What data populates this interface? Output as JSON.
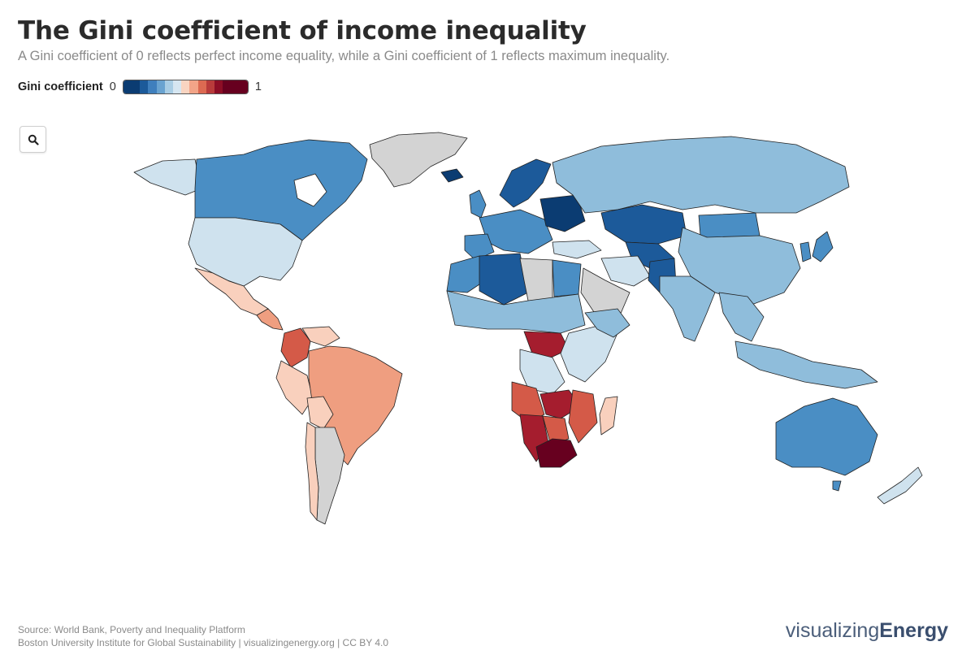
{
  "header": {
    "title": "The Gini coefficient of income inequality",
    "subtitle": "A Gini coefficient of 0 reflects perfect income equality, while a Gini coefficient of 1 reflects maximum inequality."
  },
  "legend": {
    "title": "Gini coefficient",
    "min_label": "0",
    "max_label": "1",
    "colors": [
      "#0b3c72",
      "#0b3c72",
      "#1c5a9a",
      "#3f7fbd",
      "#6aa3d0",
      "#a9cde4",
      "#d6e6f1",
      "#f9d4c1",
      "#f2a488",
      "#dc6a52",
      "#b83b3b",
      "#8c0e26",
      "#67001f",
      "#67001f",
      "#67001f"
    ]
  },
  "controls": {
    "zoom_icon": "magnifier-icon"
  },
  "palette": {
    "no_data": "#d3d3d3",
    "very_low": "#0b3c72",
    "low": "#1c5a9a",
    "low_mid": "#4a8ec4",
    "mid_low": "#8fbddb",
    "mid": "#cfe2ee",
    "mid_high": "#f9d0bd",
    "high": "#ef9e80",
    "higher": "#d45a48",
    "very_high": "#a51d2e",
    "extreme": "#67001f"
  },
  "footer": {
    "source_line1": "Source: World Bank, Poverty and Inequality Platform",
    "source_line2": "Boston University Institute for Global Sustainability | visualizingenergy.org | CC BY 4.0",
    "brand_light": "visualizing",
    "brand_bold": "Energy"
  }
}
